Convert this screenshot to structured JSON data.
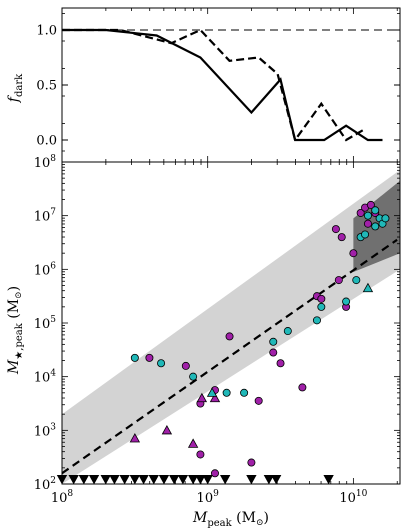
{
  "chart_data": [
    {
      "type": "line",
      "ylabel_main": "f",
      "ylabel_sub": "dark",
      "ytick_labels": [
        "0.0",
        "0.5",
        "1.0"
      ],
      "yticks": [
        0.0,
        0.5,
        1.0
      ],
      "ylim": [
        -0.2,
        1.2
      ],
      "xlim_log10": [
        8.0,
        10.32
      ],
      "reference_line": {
        "y": 1.0,
        "style": "dashed",
        "color": "#808080"
      },
      "series": [
        {
          "style": "solid",
          "x_log10": [
            8.0,
            8.3,
            8.65,
            8.95,
            9.3,
            9.5,
            9.6,
            9.8,
            9.95,
            10.1,
            10.2
          ],
          "y": [
            1.0,
            1.0,
            0.95,
            0.75,
            0.25,
            0.55,
            0.0,
            0.0,
            0.13,
            0.0,
            0.0
          ]
        },
        {
          "style": "dashed",
          "x_log10": [
            8.0,
            8.4,
            8.75,
            8.95,
            9.15,
            9.35,
            9.48,
            9.6,
            9.78,
            9.95,
            10.08
          ],
          "y": [
            1.0,
            1.0,
            0.88,
            1.0,
            0.72,
            0.75,
            0.6,
            0.0,
            0.33,
            0.0,
            0.1
          ]
        }
      ]
    },
    {
      "type": "scatter",
      "xlabel_main": "M",
      "xlabel_sub": "peak",
      "xlabel_unit": " (M",
      "xlabel_unit_close": ")",
      "ylabel_main": "M",
      "ylabel_sub": "★,peak",
      "ylabel_unit": " (M",
      "ylabel_unit_close": ")",
      "x_scale": "log",
      "y_scale": "log",
      "xlim_log10": [
        8.0,
        10.32
      ],
      "ylim_log10": [
        2.0,
        8.0
      ],
      "xtick_labels": [
        {
          "base": "10",
          "exp": "8",
          "log": 8
        },
        {
          "base": "10",
          "exp": "9",
          "log": 9
        },
        {
          "base": "10",
          "exp": "10",
          "log": 10
        }
      ],
      "ytick_labels": [
        {
          "base": "10",
          "exp": "2",
          "log": 2
        },
        {
          "base": "10",
          "exp": "3",
          "log": 3
        },
        {
          "base": "10",
          "exp": "4",
          "log": 4
        },
        {
          "base": "10",
          "exp": "5",
          "log": 5
        },
        {
          "base": "10",
          "exp": "6",
          "log": 6
        },
        {
          "base": "10",
          "exp": "7",
          "log": 7
        },
        {
          "base": "10",
          "exp": "8",
          "log": 8
        }
      ],
      "colors": {
        "magenta": "#a020a8",
        "cyan": "#20b8b8",
        "light_band": "#d3d3d3",
        "dark_band": "#707070",
        "dashed_fit": "#000000"
      },
      "fit_line": {
        "x_log10": [
          8.0,
          10.3
        ],
        "y_log10": [
          2.2,
          6.55
        ],
        "style": "dashed"
      },
      "light_band": {
        "x_log10": [
          8.0,
          10.32
        ],
        "upper_log10": [
          3.3,
          7.85
        ],
        "lower_log10": [
          2.0,
          6.0
        ]
      },
      "dark_band": {
        "x_log10": [
          10.0,
          10.32
        ],
        "upper_log10": [
          6.95,
          7.65
        ],
        "lower_log10": [
          5.95,
          6.3
        ]
      },
      "circles_magenta_log10": [
        [
          8.6,
          4.35
        ],
        [
          8.85,
          4.2
        ],
        [
          8.95,
          3.5
        ],
        [
          9.05,
          3.75
        ],
        [
          9.15,
          4.75
        ],
        [
          9.05,
          2.2
        ],
        [
          9.35,
          3.55
        ],
        [
          9.45,
          4.45
        ],
        [
          9.5,
          4.25
        ],
        [
          9.65,
          3.8
        ],
        [
          9.75,
          5.5
        ],
        [
          9.88,
          6.75
        ],
        [
          9.9,
          5.8
        ],
        [
          9.92,
          6.6
        ],
        [
          9.95,
          5.3
        ],
        [
          10.0,
          6.3
        ],
        [
          10.05,
          7.05
        ],
        [
          10.08,
          7.15
        ],
        [
          10.1,
          6.85
        ],
        [
          10.12,
          7.2
        ],
        [
          10.15,
          7.05
        ],
        [
          8.95,
          2.55
        ],
        [
          9.3,
          2.4
        ],
        [
          9.78,
          5.45
        ]
      ],
      "circles_cyan_log10": [
        [
          8.5,
          4.35
        ],
        [
          8.68,
          4.25
        ],
        [
          8.9,
          4.0
        ],
        [
          9.13,
          3.7
        ],
        [
          9.25,
          3.7
        ],
        [
          9.45,
          4.65
        ],
        [
          9.55,
          4.85
        ],
        [
          9.75,
          5.05
        ],
        [
          9.78,
          5.3
        ],
        [
          9.95,
          5.4
        ],
        [
          10.02,
          5.8
        ],
        [
          10.05,
          6.6
        ],
        [
          10.08,
          6.65
        ],
        [
          10.1,
          7.0
        ],
        [
          10.15,
          6.8
        ],
        [
          10.18,
          6.95
        ],
        [
          10.2,
          6.85
        ],
        [
          10.22,
          6.95
        ],
        [
          10.15,
          7.1
        ]
      ],
      "triangles_up_magenta_log10": [
        [
          8.5,
          2.85
        ],
        [
          8.72,
          3.0
        ],
        [
          8.9,
          2.75
        ],
        [
          8.96,
          3.6
        ],
        [
          9.05,
          3.6
        ]
      ],
      "triangles_up_cyan_log10": [
        [
          9.03,
          3.7
        ],
        [
          10.1,
          5.65
        ]
      ],
      "triangles_down_log10": [
        [
          8.0,
          2.0
        ],
        [
          8.08,
          2.0
        ],
        [
          8.15,
          2.0
        ],
        [
          8.22,
          2.0
        ],
        [
          8.3,
          2.0
        ],
        [
          8.36,
          2.0
        ],
        [
          8.43,
          2.0
        ],
        [
          8.5,
          2.0
        ],
        [
          8.56,
          2.0
        ],
        [
          8.63,
          2.0
        ],
        [
          8.7,
          2.0
        ],
        [
          8.77,
          2.0
        ],
        [
          8.83,
          2.0
        ],
        [
          8.9,
          2.0
        ],
        [
          8.95,
          2.0
        ],
        [
          9.0,
          2.0
        ],
        [
          9.12,
          2.0
        ],
        [
          9.3,
          2.0
        ],
        [
          9.42,
          2.0
        ],
        [
          9.47,
          2.0
        ],
        [
          9.83,
          2.0
        ]
      ]
    }
  ]
}
